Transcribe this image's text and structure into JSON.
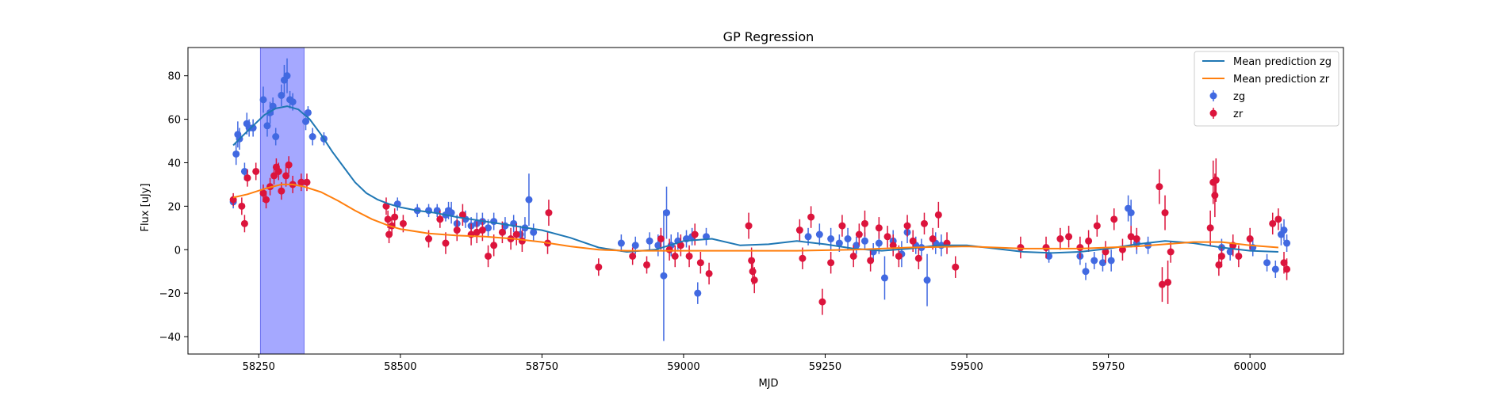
{
  "chart_data": {
    "type": "scatter",
    "title": "GP Regression",
    "xlabel": "MJD",
    "ylabel": "Flux [uJy]",
    "xlim": [
      58125,
      60165
    ],
    "ylim": [
      -48,
      93
    ],
    "xticks": [
      58250,
      58500,
      58750,
      59000,
      59250,
      59500,
      59750,
      60000
    ],
    "yticks": [
      -40,
      -20,
      0,
      20,
      40,
      60,
      80
    ],
    "grid": false,
    "legend_position": "top-right",
    "legend": [
      "Mean prediction zg",
      "Mean prediction zr",
      "zg",
      "zr"
    ],
    "highlight_span": {
      "x_start": 58253,
      "x_end": 58330,
      "color": "#a5a8ff"
    },
    "colors": {
      "zg_line": "#1f77b4",
      "zr_line": "#ff7f0e",
      "zg_points": "#4169e1",
      "zr_points": "#dc143c"
    },
    "series": [
      {
        "name": "Mean prediction zg",
        "kind": "line",
        "x": [
          58205,
          58220,
          58240,
          58260,
          58280,
          58300,
          58320,
          58340,
          58360,
          58380,
          58400,
          58420,
          58440,
          58460,
          58480,
          58500,
          58530,
          58560,
          58600,
          58650,
          58700,
          58750,
          58800,
          58850,
          58900,
          58950,
          59000,
          59050,
          59100,
          59150,
          59200,
          59250,
          59300,
          59350,
          59400,
          59450,
          59500,
          59550,
          59600,
          59650,
          59700,
          59750,
          59800,
          59850,
          59900,
          59950,
          60000,
          60050
        ],
        "y": [
          48,
          52,
          57,
          62,
          65,
          66,
          64.5,
          60,
          53,
          45,
          38,
          31,
          26,
          23,
          21,
          19.5,
          18,
          17,
          15,
          13,
          11,
          9,
          5.5,
          1,
          -1,
          0,
          4,
          5,
          2,
          2.5,
          4,
          2.5,
          0.5,
          -0.5,
          0.5,
          2,
          2,
          0.5,
          -1,
          -1.5,
          -1,
          0.5,
          2.5,
          4,
          3,
          1,
          -0.5,
          -1
        ]
      },
      {
        "name": "Mean prediction zr",
        "kind": "line",
        "x": [
          58205,
          58230,
          58260,
          58290,
          58310,
          58330,
          58360,
          58390,
          58420,
          58450,
          58480,
          58500,
          58550,
          58600,
          58650,
          58700,
          58750,
          58800,
          58850,
          58900,
          58950,
          59000,
          59100,
          59200,
          59300,
          59400,
          59500,
          59600,
          59700,
          59800,
          59850,
          59900,
          59950,
          60000,
          60050
        ],
        "y": [
          24,
          25.5,
          28,
          30,
          30,
          29,
          26.5,
          22.5,
          18,
          14,
          11,
          9.5,
          7.5,
          6.5,
          6,
          5,
          3.5,
          1.5,
          0,
          -0.5,
          -0.5,
          -0.5,
          -0.5,
          -0.5,
          0,
          1,
          1.5,
          0.5,
          0.5,
          1.5,
          2.5,
          3.5,
          3.5,
          2,
          1
        ]
      },
      {
        "name": "zg",
        "kind": "errorbar",
        "points": [
          [
            58205,
            22,
            3
          ],
          [
            58210,
            44,
            5
          ],
          [
            58213,
            53,
            6
          ],
          [
            58216,
            51,
            5
          ],
          [
            58225,
            36,
            4
          ],
          [
            58229,
            58,
            5
          ],
          [
            58233,
            56,
            4
          ],
          [
            58240,
            56,
            4
          ],
          [
            58258,
            69,
            6
          ],
          [
            58265,
            57,
            5
          ],
          [
            58270,
            63,
            5
          ],
          [
            58275,
            66,
            4
          ],
          [
            58280,
            52,
            4
          ],
          [
            58290,
            71,
            5
          ],
          [
            58295,
            78,
            7
          ],
          [
            58300,
            80,
            8
          ],
          [
            58305,
            69,
            4
          ],
          [
            58310,
            68,
            4
          ],
          [
            58333,
            59,
            4
          ],
          [
            58337,
            63,
            3
          ],
          [
            58345,
            52,
            4
          ],
          [
            58365,
            51,
            3
          ],
          [
            58495,
            21,
            3
          ],
          [
            58530,
            18,
            3
          ],
          [
            58550,
            18,
            3
          ],
          [
            58565,
            18,
            3
          ],
          [
            58580,
            16,
            3
          ],
          [
            58585,
            18,
            4
          ],
          [
            58590,
            17,
            5
          ],
          [
            58600,
            12,
            4
          ],
          [
            58615,
            14,
            4
          ],
          [
            58625,
            11,
            4
          ],
          [
            58635,
            12,
            5
          ],
          [
            58645,
            13,
            4
          ],
          [
            58655,
            10,
            4
          ],
          [
            58665,
            13,
            4
          ],
          [
            58685,
            11,
            4
          ],
          [
            58700,
            12,
            4
          ],
          [
            58712,
            7,
            4
          ],
          [
            58720,
            10,
            5
          ],
          [
            58727,
            23,
            12
          ],
          [
            58735,
            8,
            4
          ],
          [
            58890,
            3,
            4
          ],
          [
            58915,
            2,
            4
          ],
          [
            58940,
            4,
            4
          ],
          [
            58955,
            2,
            5
          ],
          [
            58965,
            -12,
            30
          ],
          [
            58970,
            17,
            12
          ],
          [
            58978,
            2,
            5
          ],
          [
            58990,
            4,
            4
          ],
          [
            59005,
            5,
            4
          ],
          [
            59015,
            6,
            4
          ],
          [
            59025,
            -20,
            5
          ],
          [
            59040,
            6,
            4
          ],
          [
            59220,
            6,
            4
          ],
          [
            59240,
            7,
            5
          ],
          [
            59260,
            5,
            5
          ],
          [
            59275,
            3,
            4
          ],
          [
            59290,
            5,
            5
          ],
          [
            59305,
            2,
            4
          ],
          [
            59320,
            4,
            4
          ],
          [
            59335,
            -1,
            4
          ],
          [
            59345,
            3,
            5
          ],
          [
            59355,
            -13,
            10
          ],
          [
            59370,
            4,
            5
          ],
          [
            59385,
            -2,
            6
          ],
          [
            59395,
            8,
            5
          ],
          [
            59410,
            2,
            4
          ],
          [
            59420,
            1,
            4
          ],
          [
            59430,
            -14,
            12
          ],
          [
            59445,
            3,
            5
          ],
          [
            59455,
            2,
            5
          ],
          [
            59645,
            -3,
            3
          ],
          [
            59700,
            -3,
            4
          ],
          [
            59710,
            -10,
            4
          ],
          [
            59725,
            -5,
            4
          ],
          [
            59740,
            -6,
            4
          ],
          [
            59755,
            -5,
            5
          ],
          [
            59785,
            19,
            6
          ],
          [
            59790,
            17,
            6
          ],
          [
            59800,
            3,
            5
          ],
          [
            59820,
            2,
            4
          ],
          [
            59950,
            1,
            4
          ],
          [
            59965,
            -1,
            4
          ],
          [
            60005,
            1,
            4
          ],
          [
            60030,
            -6,
            4
          ],
          [
            60045,
            -9,
            4
          ],
          [
            60055,
            7,
            5
          ],
          [
            60060,
            9,
            5
          ],
          [
            60065,
            3,
            4
          ]
        ]
      },
      {
        "name": "zr",
        "kind": "errorbar",
        "points": [
          [
            58205,
            23,
            3
          ],
          [
            58220,
            20,
            4
          ],
          [
            58225,
            12,
            4
          ],
          [
            58230,
            33,
            4
          ],
          [
            58245,
            36,
            4
          ],
          [
            58258,
            26,
            4
          ],
          [
            58263,
            23,
            4
          ],
          [
            58270,
            29,
            4
          ],
          [
            58277,
            34,
            4
          ],
          [
            58281,
            38,
            4
          ],
          [
            58285,
            36,
            4
          ],
          [
            58290,
            27,
            4
          ],
          [
            58298,
            34,
            5
          ],
          [
            58303,
            39,
            4
          ],
          [
            58310,
            30,
            4
          ],
          [
            58325,
            31,
            4
          ],
          [
            58335,
            31,
            4
          ],
          [
            58475,
            20,
            4
          ],
          [
            58478,
            14,
            4
          ],
          [
            58480,
            7,
            4
          ],
          [
            58485,
            11,
            4
          ],
          [
            58490,
            15,
            4
          ],
          [
            58505,
            12,
            4
          ],
          [
            58550,
            5,
            4
          ],
          [
            58570,
            14,
            4
          ],
          [
            58580,
            3,
            5
          ],
          [
            58600,
            9,
            5
          ],
          [
            58610,
            16,
            5
          ],
          [
            58625,
            7,
            5
          ],
          [
            58635,
            8,
            5
          ],
          [
            58645,
            9,
            5
          ],
          [
            58655,
            -3,
            5
          ],
          [
            58665,
            2,
            5
          ],
          [
            58680,
            8,
            5
          ],
          [
            58695,
            5,
            5
          ],
          [
            58705,
            7,
            5
          ],
          [
            58715,
            4,
            5
          ],
          [
            58760,
            3,
            5
          ],
          [
            58762,
            17,
            6
          ],
          [
            58850,
            -8,
            4
          ],
          [
            58910,
            -3,
            4
          ],
          [
            58935,
            -7,
            4
          ],
          [
            58960,
            5,
            5
          ],
          [
            58975,
            0,
            5
          ],
          [
            58985,
            -3,
            5
          ],
          [
            58995,
            2,
            5
          ],
          [
            59010,
            -3,
            5
          ],
          [
            59020,
            7,
            5
          ],
          [
            59030,
            -6,
            5
          ],
          [
            59045,
            -11,
            5
          ],
          [
            59115,
            11,
            6
          ],
          [
            59120,
            -5,
            6
          ],
          [
            59122,
            -10,
            6
          ],
          [
            59125,
            -14,
            6
          ],
          [
            59205,
            9,
            5
          ],
          [
            59210,
            -4,
            5
          ],
          [
            59225,
            15,
            5
          ],
          [
            59245,
            -24,
            6
          ],
          [
            59260,
            -6,
            5
          ],
          [
            59280,
            11,
            5
          ],
          [
            59300,
            -3,
            5
          ],
          [
            59310,
            7,
            5
          ],
          [
            59320,
            12,
            6
          ],
          [
            59330,
            -5,
            5
          ],
          [
            59345,
            10,
            5
          ],
          [
            59360,
            6,
            5
          ],
          [
            59370,
            2,
            5
          ],
          [
            59380,
            -3,
            5
          ],
          [
            59395,
            11,
            5
          ],
          [
            59405,
            4,
            5
          ],
          [
            59415,
            -4,
            5
          ],
          [
            59425,
            12,
            5
          ],
          [
            59440,
            5,
            5
          ],
          [
            59450,
            16,
            6
          ],
          [
            59465,
            3,
            5
          ],
          [
            59480,
            -8,
            5
          ],
          [
            59595,
            1,
            5
          ],
          [
            59640,
            1,
            5
          ],
          [
            59665,
            5,
            5
          ],
          [
            59680,
            6,
            5
          ],
          [
            59700,
            1,
            5
          ],
          [
            59715,
            4,
            5
          ],
          [
            59730,
            11,
            5
          ],
          [
            59745,
            -1,
            5
          ],
          [
            59760,
            14,
            5
          ],
          [
            59775,
            0,
            5
          ],
          [
            59790,
            6,
            5
          ],
          [
            59800,
            5,
            5
          ],
          [
            59840,
            29,
            8
          ],
          [
            59845,
            -16,
            8
          ],
          [
            59850,
            17,
            8
          ],
          [
            59855,
            -15,
            10
          ],
          [
            59860,
            -1,
            5
          ],
          [
            59930,
            10,
            8
          ],
          [
            59935,
            31,
            10
          ],
          [
            59938,
            25,
            10
          ],
          [
            59940,
            32,
            10
          ],
          [
            59945,
            -7,
            5
          ],
          [
            59950,
            -3,
            5
          ],
          [
            59970,
            2,
            5
          ],
          [
            59980,
            -3,
            5
          ],
          [
            60000,
            5,
            5
          ],
          [
            60040,
            12,
            5
          ],
          [
            60050,
            14,
            5
          ],
          [
            60060,
            -6,
            5
          ],
          [
            60065,
            -9,
            5
          ]
        ]
      }
    ]
  }
}
